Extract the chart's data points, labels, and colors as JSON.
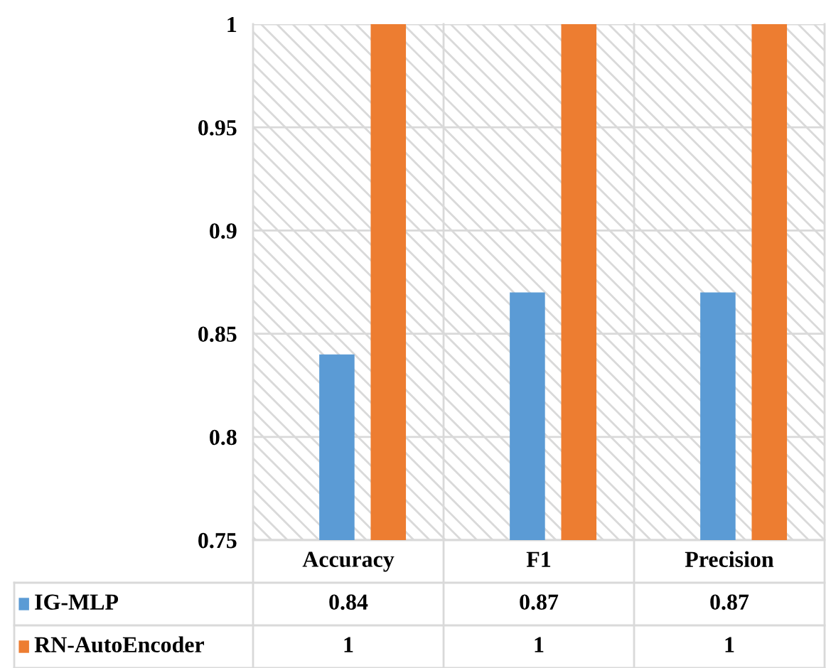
{
  "chart_data": {
    "type": "bar",
    "categories": [
      "Accuracy",
      "F1",
      "Precision"
    ],
    "series": [
      {
        "name": "IG-MLP",
        "color": "#5b9bd5",
        "values": [
          0.84,
          0.87,
          0.87
        ]
      },
      {
        "name": "RN-AutoEncoder",
        "color": "#ed7d31",
        "values": [
          1,
          1,
          1
        ]
      }
    ],
    "ylim": [
      0.75,
      1
    ],
    "yticks": [
      0.75,
      0.8,
      0.85,
      0.9,
      0.95,
      1
    ],
    "grid": "y",
    "legend": "bottom",
    "data_labels": true
  }
}
